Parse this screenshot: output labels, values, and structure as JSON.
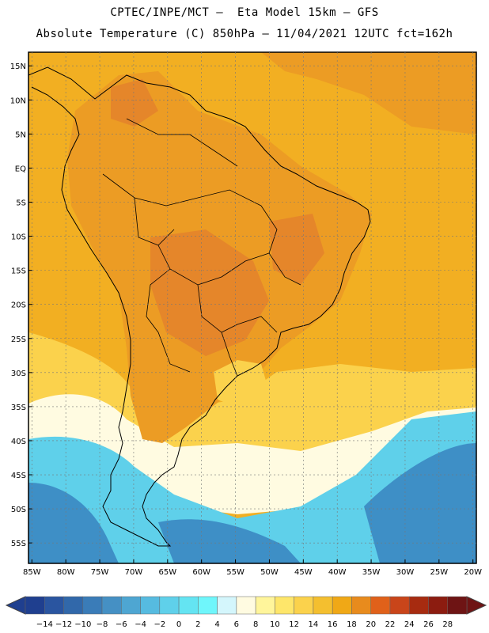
{
  "title": {
    "line1": "CPTEC/INPE/MCT –  Eta Model 15km – GFS",
    "line2": "Absolute Temperature (C) 850hPa – 11/04/2021 12UTC fct=162h"
  },
  "axes": {
    "lat_labels": [
      "15N",
      "10N",
      "5N",
      "EQ",
      "5S",
      "10S",
      "15S",
      "20S",
      "25S",
      "30S",
      "35S",
      "40S",
      "45S",
      "50S",
      "55S"
    ],
    "lon_labels": [
      "85W",
      "80W",
      "75W",
      "70W",
      "65W",
      "60W",
      "55W",
      "50W",
      "45W",
      "40W",
      "35W",
      "30W",
      "25W",
      "20W"
    ],
    "lat_range": [
      17,
      -58
    ],
    "lon_range": [
      -85.5,
      -19.5
    ],
    "grid": "dotted"
  },
  "colorbar": {
    "labels": [
      "−14",
      "−12",
      "−10",
      "−8",
      "−6",
      "−4",
      "−2",
      "0",
      "2",
      "4",
      "6",
      "8",
      "10",
      "12",
      "14",
      "16",
      "18",
      "20",
      "22",
      "24",
      "26",
      "28"
    ],
    "colors": [
      "#1f3f8f",
      "#2a55a0",
      "#3168aa",
      "#3a7cb8",
      "#4590c4",
      "#4ea6d2",
      "#56bbe0",
      "#5fd0ea",
      "#64e4f2",
      "#6ff6fb",
      "#d4f6fc",
      "#fffbe1",
      "#fff59b",
      "#fee66a",
      "#fbd24c",
      "#f4bf2f",
      "#f0a816",
      "#e88b1d",
      "#e0611a",
      "#c9451a",
      "#a72b10",
      "#8c1c10",
      "#6e1414"
    ],
    "left_arrow": "#1f3f8f",
    "right_arrow": "#6e1414"
  },
  "layers": {
    "land_color": "#ec9c24",
    "land_hot_color": "#e5862a",
    "ocean_warm_color": "#f2af22",
    "subtropical_color": "#fbd24c",
    "cool_color": "#fffbe1",
    "cold_color": "#5fd0ea",
    "colder_color": "#3e8fc6"
  }
}
